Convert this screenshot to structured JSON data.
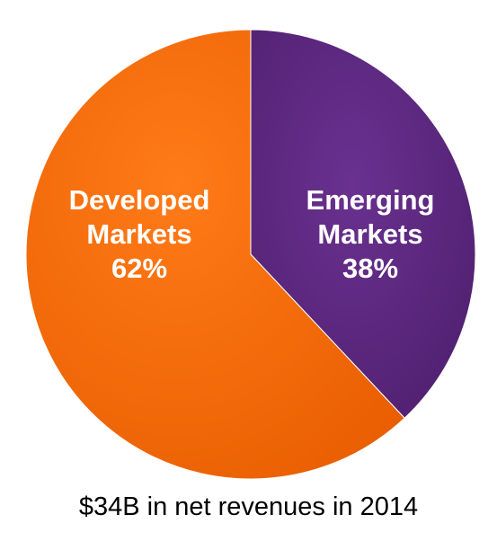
{
  "caption": "$34B in net revenues in 2014",
  "chart_data": {
    "type": "pie",
    "title": "",
    "legend": "none",
    "slices": [
      {
        "label_lines": [
          "Emerging",
          "Markets",
          "38%"
        ],
        "value": 38,
        "color": "#58267a"
      },
      {
        "label_lines": [
          "Developed",
          "Markets",
          "62%"
        ],
        "value": 62,
        "color": "#f46b0a"
      }
    ],
    "start_angle_deg": 0,
    "direction": "clockwise"
  }
}
